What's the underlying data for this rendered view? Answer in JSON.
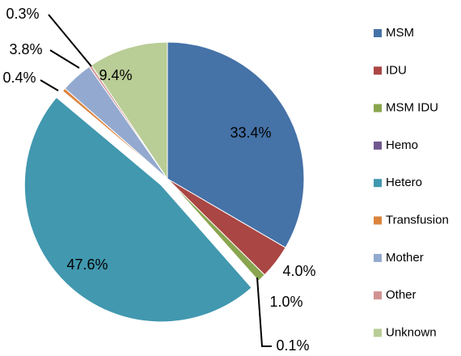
{
  "chart_data": {
    "type": "pie",
    "categories": [
      "MSM",
      "IDU",
      "MSM IDU",
      "Hemo",
      "Hetero",
      "Transfusion",
      "Mother",
      "Other",
      "Unknown"
    ],
    "values": [
      33.4,
      4.0,
      1.0,
      0.1,
      47.6,
      0.4,
      3.8,
      0.3,
      9.4
    ],
    "value_labels": [
      "33.4%",
      "4.0%",
      "1.0%",
      "0.1%",
      "47.6%",
      "0.4%",
      "3.8%",
      "0.3%",
      "9.4%"
    ],
    "colors": [
      "#4572a7",
      "#aa4643",
      "#89a54e",
      "#71588f",
      "#4198af",
      "#db843d",
      "#93a9cf",
      "#d19392",
      "#b9cd96"
    ],
    "exploded": "Hetero",
    "legend": "right"
  }
}
